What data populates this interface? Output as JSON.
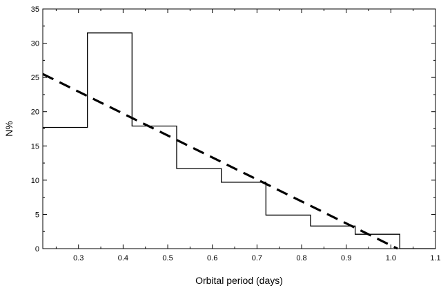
{
  "chart_data": {
    "type": "line",
    "title": "",
    "xlabel": "Orbital period (days)",
    "ylabel": "N%",
    "xlim": [
      0.22,
      1.1
    ],
    "ylim": [
      0,
      35
    ],
    "x_ticks": [
      "0.3",
      "0.4",
      "0.5",
      "0.6",
      "0.7",
      "0.8",
      "0.9",
      "1.0",
      "1.1"
    ],
    "y_ticks": [
      "0",
      "5",
      "10",
      "15",
      "20",
      "25",
      "30",
      "35"
    ],
    "grid": false,
    "legend": "none",
    "series": [
      {
        "style": "step-histogram",
        "color": "#000000",
        "bins": [
          {
            "from": 0.22,
            "to": 0.32,
            "value": 17.7
          },
          {
            "from": 0.32,
            "to": 0.42,
            "value": 31.5
          },
          {
            "from": 0.42,
            "to": 0.52,
            "value": 17.9
          },
          {
            "from": 0.52,
            "to": 0.62,
            "value": 11.7
          },
          {
            "from": 0.62,
            "to": 0.72,
            "value": 9.7
          },
          {
            "from": 0.72,
            "to": 0.82,
            "value": 4.9
          },
          {
            "from": 0.82,
            "to": 0.92,
            "value": 3.3
          },
          {
            "from": 0.92,
            "to": 1.02,
            "value": 2.1
          },
          {
            "from": 1.02,
            "to": 1.1,
            "value": 0
          }
        ]
      },
      {
        "style": "dashed-fit",
        "color": "#000000",
        "x": [
          0.22,
          1.015
        ],
        "y": [
          25.5,
          0
        ]
      }
    ]
  }
}
